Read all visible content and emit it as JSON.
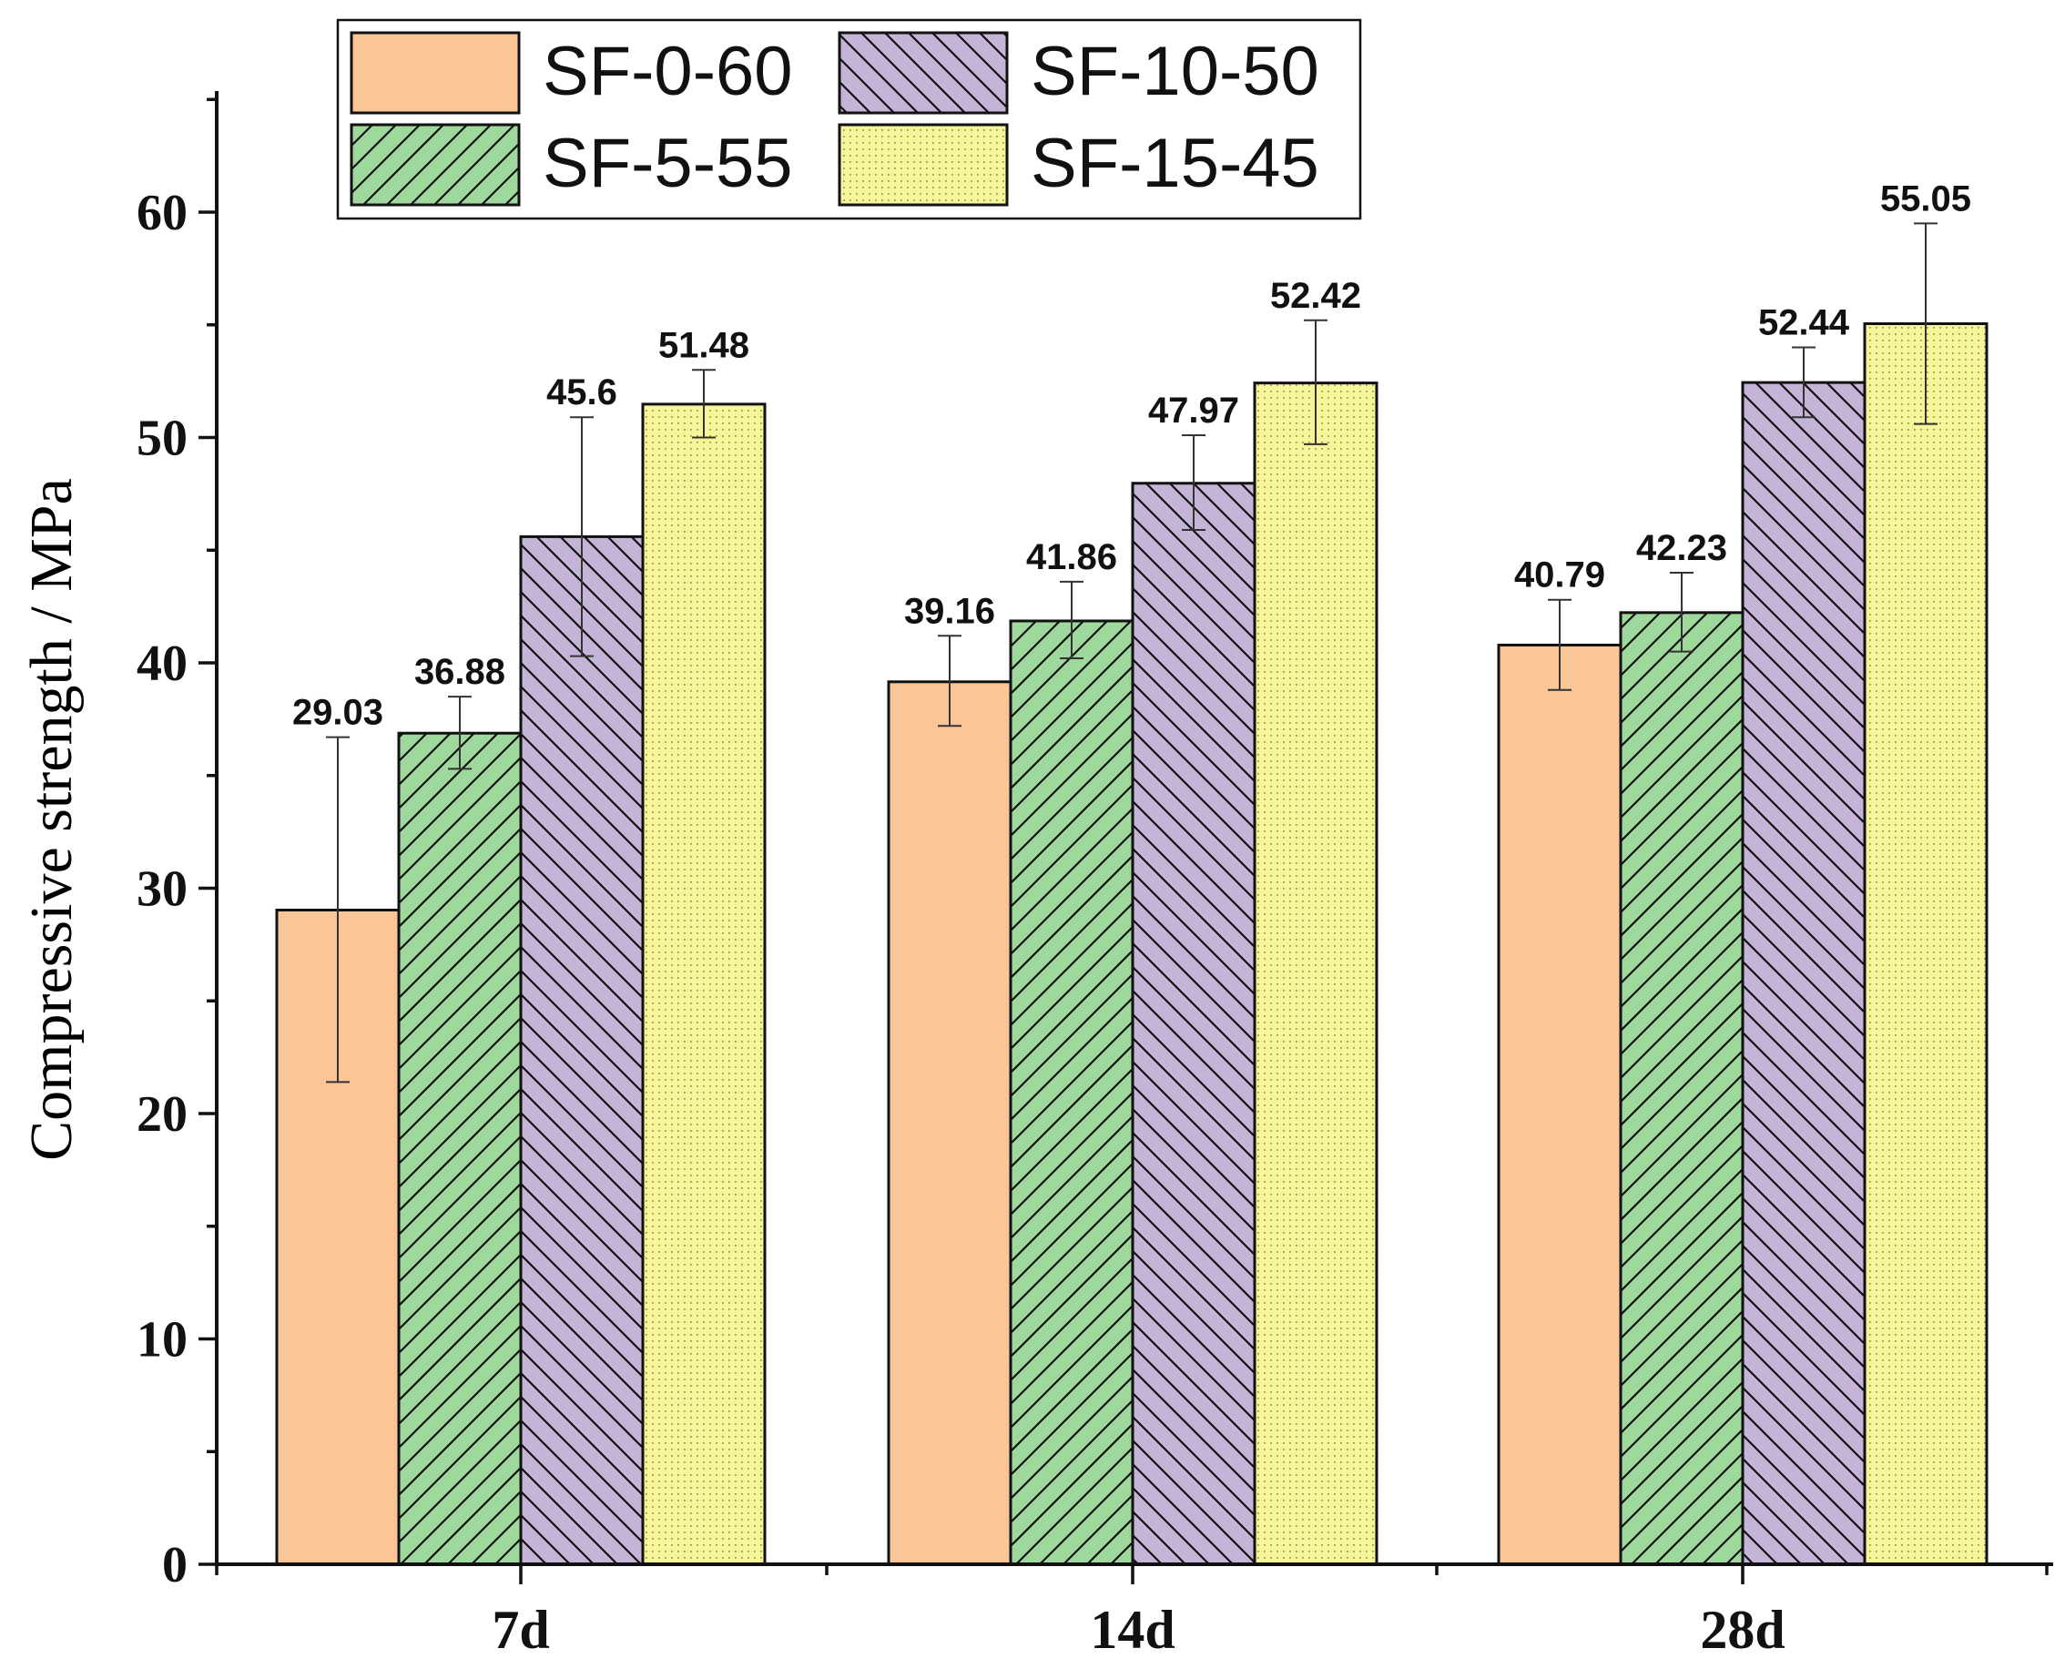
{
  "chart_data": {
    "type": "bar",
    "ylabel": "Compressive strength / MPa",
    "xlabel": "",
    "ylim": [
      0,
      65
    ],
    "yticks": [
      0,
      10,
      20,
      30,
      40,
      50,
      60
    ],
    "ytick_labels": [
      "0",
      "10",
      "20",
      "30",
      "40",
      "50",
      "60"
    ],
    "categories": [
      "7d",
      "14d",
      "28d"
    ],
    "legend_position": "top-left",
    "grid": false,
    "series": [
      {
        "name": "SF-0-60",
        "color": "#FBC697",
        "pattern": "solid",
        "values": [
          29.03,
          39.16,
          40.79
        ],
        "value_labels": [
          "29.03",
          "39.16",
          "40.79"
        ],
        "error_low": [
          21.4,
          37.2,
          38.8
        ],
        "error_high": [
          36.7,
          41.2,
          42.8
        ]
      },
      {
        "name": "SF-5-55",
        "color": "#9FD89C",
        "pattern": "hatch-forward",
        "values": [
          36.88,
          41.86,
          42.23
        ],
        "value_labels": [
          "36.88",
          "41.86",
          "42.23"
        ],
        "error_low": [
          35.3,
          40.2,
          40.5
        ],
        "error_high": [
          38.5,
          43.6,
          44.0
        ]
      },
      {
        "name": "SF-10-50",
        "color": "#C4B5D8",
        "pattern": "hatch-back",
        "values": [
          45.6,
          47.97,
          52.44
        ],
        "value_labels": [
          "45.6",
          "47.97",
          "52.44"
        ],
        "error_low": [
          40.3,
          45.9,
          50.9
        ],
        "error_high": [
          50.9,
          50.1,
          54.0
        ]
      },
      {
        "name": "SF-15-45",
        "color": "#F6F59A",
        "pattern": "dots",
        "values": [
          51.48,
          52.42,
          55.05
        ],
        "value_labels": [
          "51.48",
          "52.42",
          "55.05"
        ],
        "error_low": [
          50.0,
          49.7,
          50.6
        ],
        "error_high": [
          53.0,
          55.2,
          59.5
        ]
      }
    ]
  }
}
